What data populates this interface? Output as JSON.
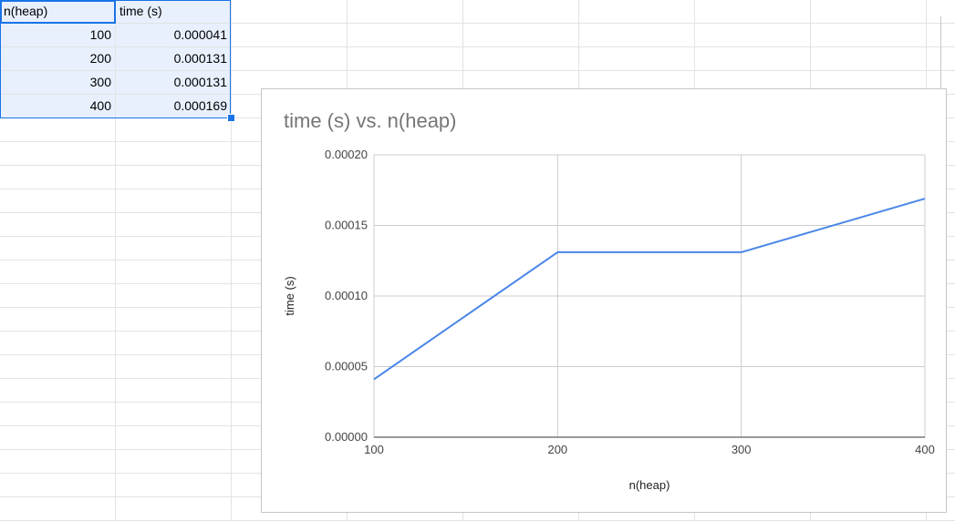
{
  "sheet": {
    "headers": [
      "n(heap)",
      "time (s)"
    ],
    "rows": [
      [
        "100",
        "0.000041"
      ],
      [
        "200",
        "0.000131"
      ],
      [
        "300",
        "0.000131"
      ],
      [
        "400",
        "0.000169"
      ]
    ],
    "selection_color": "#e8f0fe",
    "accent_color": "#1a73e8"
  },
  "chart_data": {
    "type": "line",
    "title": "time (s) vs. n(heap)",
    "xlabel": "n(heap)",
    "ylabel": "time (s)",
    "x": [
      100,
      200,
      300,
      400
    ],
    "series": [
      {
        "values": [
          4.1e-05,
          0.000131,
          0.000131,
          0.000169
        ],
        "color": "#4a86e8"
      }
    ],
    "xlim": [
      100,
      400
    ],
    "ylim": [
      0,
      0.0002
    ],
    "xticks": [
      "100",
      "200",
      "300",
      "400"
    ],
    "yticks": [
      "0.00000",
      "0.00005",
      "0.00010",
      "0.00015",
      "0.00020"
    ],
    "grid": true,
    "legend": "none"
  }
}
